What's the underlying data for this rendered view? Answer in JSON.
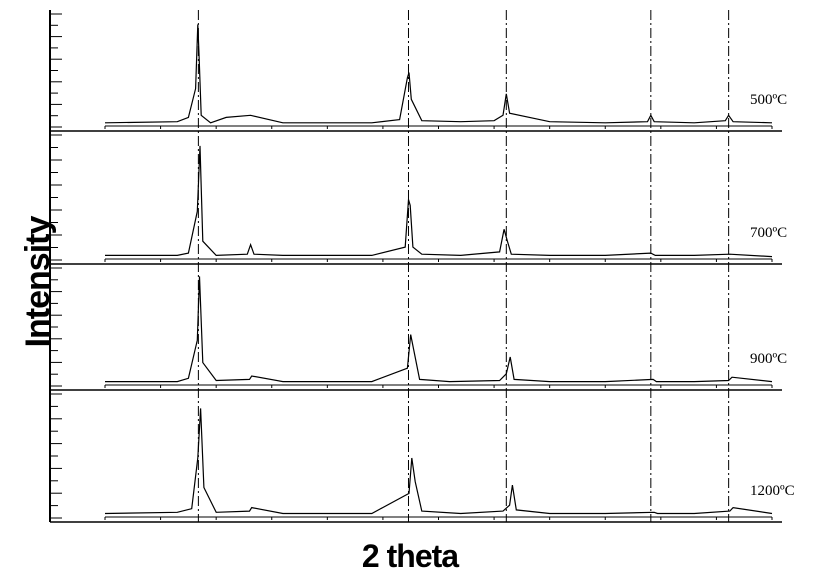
{
  "chart_data": {
    "type": "line",
    "xlabel": "2 theta",
    "ylabel": "Intensity",
    "xlim": [
      20,
      80
    ],
    "grid": false,
    "legend": "none",
    "reference_lines": [
      28.4,
      47.3,
      56.1,
      69.1,
      76.1
    ],
    "series": [
      {
        "name": "500ºC",
        "x": [
          20,
          26.5,
          27.5,
          28.15,
          28.35,
          28.45,
          28.65,
          29.5,
          30.9,
          33.1,
          36.0,
          44.0,
          46.5,
          47.2,
          47.35,
          47.55,
          48.5,
          52.0,
          55.0,
          55.8,
          56.1,
          56.4,
          60.0,
          65.0,
          68.8,
          69.1,
          69.4,
          73.0,
          75.8,
          76.1,
          76.5,
          80
        ],
        "y": [
          0.03,
          0.04,
          0.08,
          0.35,
          0.95,
          0.7,
          0.1,
          0.03,
          0.08,
          0.1,
          0.03,
          0.03,
          0.06,
          0.45,
          0.5,
          0.25,
          0.05,
          0.04,
          0.05,
          0.1,
          0.3,
          0.12,
          0.04,
          0.03,
          0.04,
          0.1,
          0.04,
          0.03,
          0.05,
          0.1,
          0.04,
          0.03
        ]
      },
      {
        "name": "700ºC",
        "x": [
          20,
          26.5,
          27.5,
          28.3,
          28.55,
          28.8,
          30.0,
          32.8,
          33.1,
          33.4,
          36.0,
          44.0,
          47.0,
          47.3,
          47.45,
          47.7,
          48.5,
          52.0,
          55.5,
          55.9,
          56.2,
          56.55,
          60.0,
          65.0,
          69.1,
          69.5,
          73.0,
          76.2,
          80
        ],
        "y": [
          0.03,
          0.03,
          0.05,
          0.4,
          0.95,
          0.15,
          0.03,
          0.04,
          0.12,
          0.04,
          0.03,
          0.03,
          0.1,
          0.5,
          0.45,
          0.1,
          0.04,
          0.03,
          0.06,
          0.25,
          0.15,
          0.04,
          0.03,
          0.03,
          0.05,
          0.03,
          0.03,
          0.04,
          0.02
        ]
      },
      {
        "name": "900ºC",
        "x": [
          20,
          26.5,
          27.5,
          28.3,
          28.5,
          28.8,
          30.0,
          33.0,
          33.2,
          36.0,
          44.0,
          47.2,
          47.5,
          47.7,
          48.3,
          51.0,
          55.5,
          56.1,
          56.45,
          56.8,
          60.0,
          65.0,
          69.3,
          69.6,
          73.0,
          76.1,
          76.4,
          80
        ],
        "y": [
          0.03,
          0.03,
          0.06,
          0.4,
          0.97,
          0.2,
          0.04,
          0.05,
          0.08,
          0.03,
          0.03,
          0.15,
          0.45,
          0.35,
          0.05,
          0.03,
          0.04,
          0.1,
          0.25,
          0.05,
          0.03,
          0.03,
          0.05,
          0.03,
          0.03,
          0.04,
          0.07,
          0.03
        ]
      },
      {
        "name": "1200ºC",
        "x": [
          20,
          26.5,
          27.8,
          28.35,
          28.6,
          28.9,
          30.0,
          33.0,
          33.2,
          36.0,
          44.0,
          47.35,
          47.6,
          47.9,
          48.5,
          52.0,
          55.8,
          56.4,
          56.65,
          57.0,
          60.0,
          65.0,
          69.4,
          69.7,
          73.0,
          76.2,
          76.5,
          80
        ],
        "y": [
          0.03,
          0.04,
          0.07,
          0.5,
          0.92,
          0.25,
          0.04,
          0.05,
          0.08,
          0.03,
          0.03,
          0.2,
          0.5,
          0.3,
          0.05,
          0.03,
          0.05,
          0.1,
          0.27,
          0.06,
          0.03,
          0.03,
          0.04,
          0.03,
          0.03,
          0.05,
          0.08,
          0.03
        ]
      }
    ]
  }
}
